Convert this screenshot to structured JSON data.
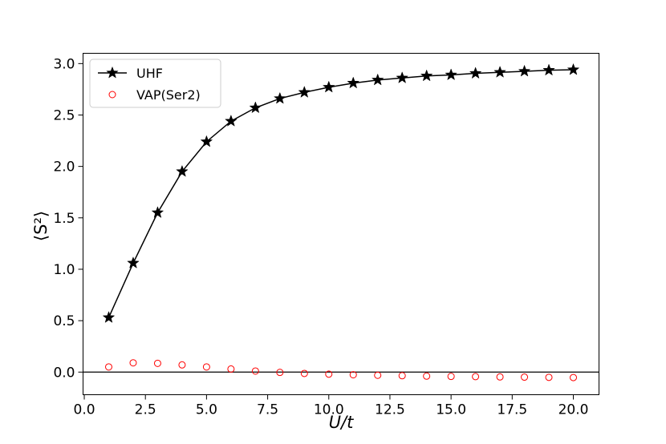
{
  "chart_data": {
    "type": "scatter",
    "title": "",
    "xlabel": "U/t",
    "ylabel": "⟨S²⟩",
    "xlim": [
      -0.05,
      21.05
    ],
    "ylim": [
      -0.22,
      3.1
    ],
    "xticks": [
      0.0,
      2.5,
      5.0,
      7.5,
      10.0,
      12.5,
      15.0,
      17.5,
      20.0
    ],
    "xtick_labels": [
      "0.0",
      "2.5",
      "5.0",
      "7.5",
      "10.0",
      "12.5",
      "15.0",
      "17.5",
      "20.0"
    ],
    "yticks": [
      0.0,
      0.5,
      1.0,
      1.5,
      2.0,
      2.5,
      3.0
    ],
    "ytick_labels": [
      "0.0",
      "0.5",
      "1.0",
      "1.5",
      "2.0",
      "2.5",
      "3.0"
    ],
    "hline": 0.0,
    "legend_position": "top-left",
    "x": [
      1,
      2,
      3,
      4,
      5,
      6,
      7,
      8,
      9,
      10,
      11,
      12,
      13,
      14,
      15,
      16,
      17,
      18,
      19,
      20
    ],
    "series": [
      {
        "name": "UHF",
        "marker": "star",
        "line": true,
        "color": "#000000",
        "values": [
          0.53,
          1.06,
          1.55,
          1.95,
          2.24,
          2.44,
          2.57,
          2.66,
          2.72,
          2.77,
          2.81,
          2.84,
          2.86,
          2.88,
          2.89,
          2.905,
          2.915,
          2.925,
          2.935,
          2.94
        ]
      },
      {
        "name": "VAP(Ser2)",
        "marker": "open-circle",
        "line": false,
        "color": "#ff0000",
        "values": [
          0.05,
          0.09,
          0.085,
          0.07,
          0.05,
          0.03,
          0.01,
          -0.003,
          -0.013,
          -0.02,
          -0.026,
          -0.031,
          -0.035,
          -0.039,
          -0.042,
          -0.044,
          -0.047,
          -0.049,
          -0.051,
          -0.053
        ]
      }
    ]
  }
}
